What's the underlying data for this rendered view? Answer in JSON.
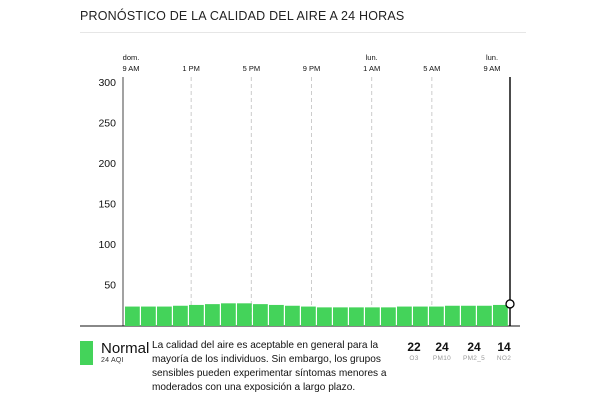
{
  "title": "PRONÓSTICO DE LA CALIDAD DEL AIRE A 24 HORAS",
  "colors": {
    "bar": "#44d35a",
    "grid": "#cccccc",
    "axis": "#111111",
    "swatch": "#44d35a"
  },
  "chart_data": {
    "type": "bar",
    "title": "PRONÓSTICO DE LA CALIDAD DEL AIRE A 24 HORAS",
    "ylim": [
      0,
      300
    ],
    "yticks": [
      "50",
      "100",
      "150",
      "200",
      "250",
      "300"
    ],
    "x_tick_labels": [
      {
        "day": "dom.",
        "time": "9 AM"
      },
      {
        "day": "",
        "time": "1 PM"
      },
      {
        "day": "",
        "time": "5 PM"
      },
      {
        "day": "",
        "time": "9 PM"
      },
      {
        "day": "lun.",
        "time": "1 AM"
      },
      {
        "day": "",
        "time": "5 AM"
      },
      {
        "day": "lun.",
        "time": "9 AM"
      }
    ],
    "values": [
      24,
      24,
      24,
      25,
      26,
      27,
      28,
      28,
      27,
      26,
      25,
      24,
      23,
      23,
      23,
      23,
      23,
      24,
      24,
      24,
      25,
      25,
      25,
      26
    ],
    "grid": true
  },
  "legend": {
    "level": "Normal",
    "aqi_label": "24 AQI",
    "description": "La calidad del aire es aceptable en general para la mayoría de los individuos. Sin embargo, los grupos sensibles pueden experimentar síntomas menores a moderados con una exposición a largo plazo."
  },
  "pollutants": [
    {
      "value": "22",
      "name": "O3"
    },
    {
      "value": "24",
      "name": "PM10"
    },
    {
      "value": "24",
      "name": "PM2_5"
    },
    {
      "value": "14",
      "name": "NO2"
    }
  ]
}
